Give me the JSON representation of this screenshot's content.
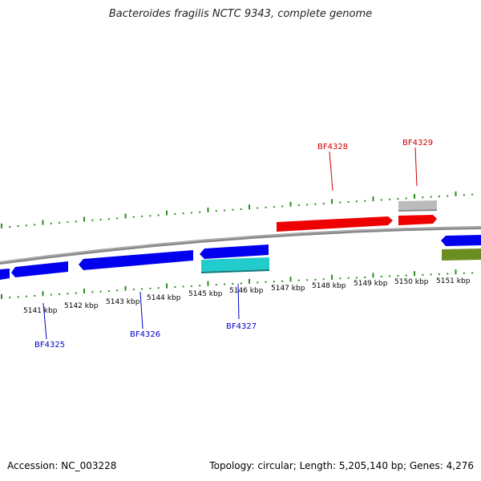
{
  "title": "Bacteroides fragilis NCTC 9343, complete genome",
  "footer": {
    "accession": "Accession: NC_003228",
    "stats": "Topology: circular; Length: 5,205,140 bp; Genes: 4,276"
  },
  "colors": {
    "backbone": "#808080",
    "tick": "#2e8b22",
    "forward_cds": "#ff0000",
    "reverse_cds": "#0000ee",
    "gray_feature": "#bbbbbb",
    "cyan_feature": "#22cccc",
    "olive_feature": "#6b8e23",
    "forward_label": "#cc0000",
    "reverse_label": "#0000cc"
  },
  "scale_labels": [
    "5141 kbp",
    "5142 kbp",
    "5143 kbp",
    "5144 kbp",
    "5145 kbp",
    "5146 kbp",
    "5147 kbp",
    "5148 kbp",
    "5149 kbp",
    "5150 kbp",
    "5151 kbp"
  ],
  "gene_labels": {
    "bf4325": "BF4325",
    "bf4326": "BF4326",
    "bf4327": "BF4327",
    "bf4328": "BF4328",
    "bf4329": "BF4329"
  }
}
